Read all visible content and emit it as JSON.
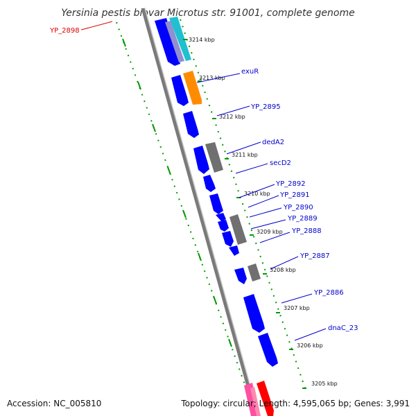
{
  "title": "Yersinia pestis biovar Microtus str. 91001, complete genome",
  "footer": {
    "accession": "Accession: NC_005810",
    "summary": "Topology: circular; Length: 4,595,065 bp; Genes: 3,991"
  },
  "colors": {
    "backbone": "#808080",
    "cds_forward": "#0000ff",
    "cds_other_strand": "#ff8c00",
    "cds_grey": "#707070",
    "rna_pink": "#ff4fa0",
    "rna_red": "#ff0000",
    "cyan": "#20c0d0",
    "tick": "#009900",
    "label_link": "#0000cc",
    "label_link_red": "#dd0000"
  },
  "ruler_labels": [
    "3214 kbp",
    "3213 kbp",
    "3212 kbp",
    "3211 kbp",
    "3210 kbp",
    "3209 kbp",
    "3208 kbp",
    "3207 kbp",
    "3206 kbp",
    "3205 kbp"
  ],
  "gene_labels": [
    "YP_2898",
    "exuR",
    "YP_2895",
    "dedA2",
    "secD2",
    "YP_2892",
    "YP_2891",
    "YP_2890",
    "YP_2889",
    "YP_2888",
    "YP_2887",
    "YP_2886",
    "dnaC_23"
  ]
}
